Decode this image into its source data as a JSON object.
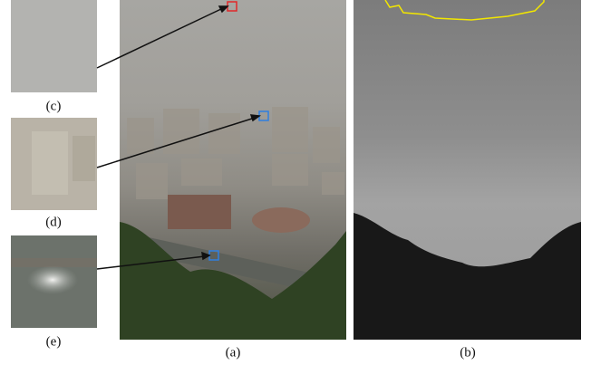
{
  "panels": [
    {
      "label": "(c)"
    },
    {
      "label": "(d)"
    },
    {
      "label": "(e)"
    },
    {
      "label": "(a)"
    },
    {
      "label": "(b)"
    }
  ]
}
